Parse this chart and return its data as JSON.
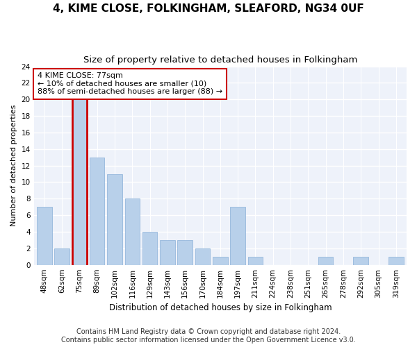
{
  "title1": "4, KIME CLOSE, FOLKINGHAM, SLEAFORD, NG34 0UF",
  "title2": "Size of property relative to detached houses in Folkingham",
  "xlabel": "Distribution of detached houses by size in Folkingham",
  "ylabel": "Number of detached properties",
  "categories": [
    "48sqm",
    "62sqm",
    "75sqm",
    "89sqm",
    "102sqm",
    "116sqm",
    "129sqm",
    "143sqm",
    "156sqm",
    "170sqm",
    "184sqm",
    "197sqm",
    "211sqm",
    "224sqm",
    "238sqm",
    "251sqm",
    "265sqm",
    "278sqm",
    "292sqm",
    "305sqm",
    "319sqm"
  ],
  "values": [
    7,
    2,
    20,
    13,
    11,
    8,
    4,
    3,
    3,
    2,
    1,
    7,
    1,
    0,
    0,
    0,
    1,
    0,
    1,
    0,
    1
  ],
  "bar_color": "#b8d0ea",
  "highlight_index": 2,
  "highlight_border_color": "#cc0000",
  "annotation_text": "4 KIME CLOSE: 77sqm\n← 10% of detached houses are smaller (10)\n88% of semi-detached houses are larger (88) →",
  "annotation_box_color": "#ffffff",
  "annotation_border_color": "#cc0000",
  "ylim": [
    0,
    24
  ],
  "yticks": [
    0,
    2,
    4,
    6,
    8,
    10,
    12,
    14,
    16,
    18,
    20,
    22,
    24
  ],
  "footer1": "Contains HM Land Registry data © Crown copyright and database right 2024.",
  "footer2": "Contains public sector information licensed under the Open Government Licence v3.0.",
  "bg_color": "#eef2fa",
  "grid_color": "#ffffff",
  "title1_fontsize": 11,
  "title2_fontsize": 9.5,
  "xlabel_fontsize": 8.5,
  "ylabel_fontsize": 8,
  "tick_fontsize": 7.5,
  "annotation_fontsize": 8,
  "footer_fontsize": 7
}
